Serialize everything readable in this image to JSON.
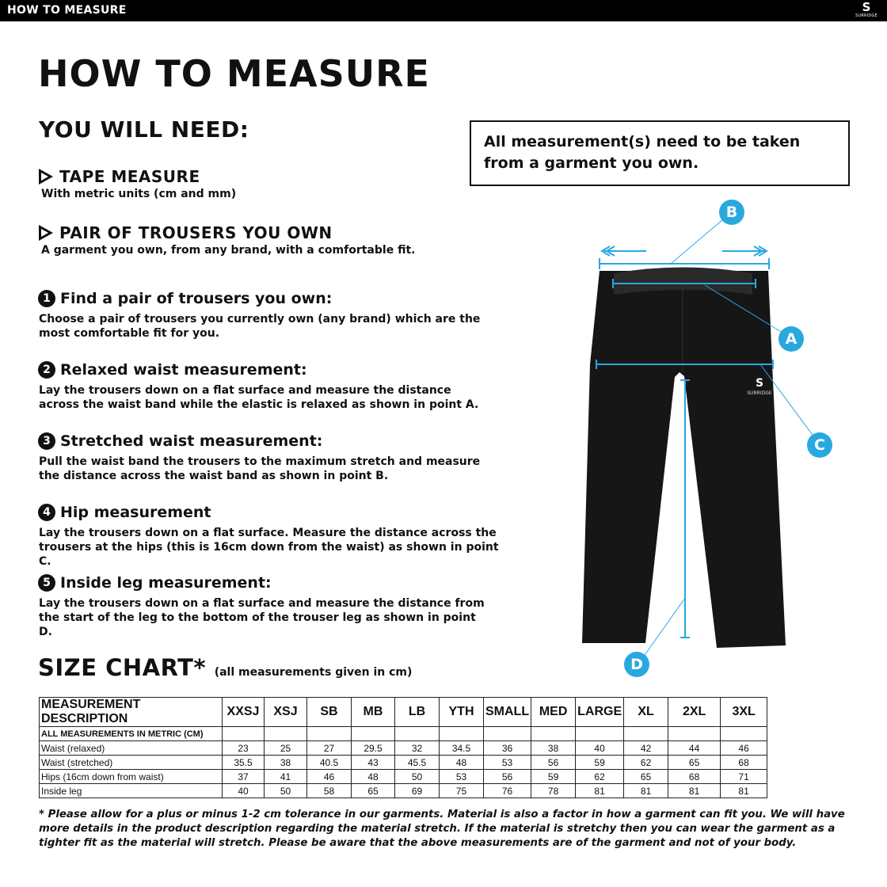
{
  "header": {
    "title": "HOW TO MEASURE",
    "logo": "SURRIDGE"
  },
  "page_title": "HOW TO MEASURE",
  "you_will_need": {
    "title": "YOU WILL NEED:",
    "items": [
      {
        "title": "TAPE MEASURE",
        "text": "With metric units (cm and mm)"
      },
      {
        "title": "PAIR OF TROUSERS YOU OWN",
        "text": "A garment you own, from any brand, with a comfortable fit."
      }
    ]
  },
  "note": "All measurement(s) need to be taken from a garment you own.",
  "steps": [
    {
      "n": "1",
      "title": "Find a pair of trousers you own:",
      "text": "Choose a pair of trousers you currently own (any brand) which are the most comfortable fit for you."
    },
    {
      "n": "2",
      "title": "Relaxed waist measurement:",
      "text": "Lay the trousers down on a flat surface and measure the distance across the waist band while the elastic is relaxed as shown in point A."
    },
    {
      "n": "3",
      "title": "Stretched waist measurement:",
      "text": "Pull the waist band the trousers to the maximum stretch and measure the distance across the waist band as shown in point B."
    },
    {
      "n": "4",
      "title": "Hip measurement",
      "text": "Lay the trousers down on a flat surface. Measure the distance across the trousers at the hips (this is 16cm down from the waist) as shown in point C."
    },
    {
      "n": "5",
      "title": "Inside leg measurement:",
      "text": "Lay the trousers down on a flat surface and measure the distance from the start of the leg to the bottom of the trouser leg as shown in point D."
    }
  ],
  "diagram": {
    "points": [
      "A",
      "B",
      "C",
      "D"
    ],
    "accent": "#29a8e0",
    "brand": "SURRIDGE"
  },
  "size_chart": {
    "title": "SIZE CHART*",
    "subtitle": "(all measurements given in cm)",
    "headers": [
      "MEASUREMENT DESCRIPTION",
      "XXSJ",
      "XSJ",
      "SB",
      "MB",
      "LB",
      "YTH",
      "SMALL",
      "MED",
      "LARGE",
      "XL",
      "2XL",
      "3XL"
    ],
    "units_row": "ALL MEASUREMENTS IN METRIC (CM)",
    "rows": [
      {
        "label": "Waist (relaxed)",
        "values": [
          "23",
          "25",
          "27",
          "29.5",
          "32",
          "34.5",
          "36",
          "38",
          "40",
          "42",
          "44",
          "46"
        ]
      },
      {
        "label": "Waist (stretched)",
        "values": [
          "35.5",
          "38",
          "40.5",
          "43",
          "45.5",
          "48",
          "53",
          "56",
          "59",
          "62",
          "65",
          "68"
        ]
      },
      {
        "label": "Hips (16cm down from waist)",
        "values": [
          "37",
          "41",
          "46",
          "48",
          "50",
          "53",
          "56",
          "59",
          "62",
          "65",
          "68",
          "71"
        ]
      },
      {
        "label": "Inside leg",
        "values": [
          "40",
          "50",
          "58",
          "65",
          "69",
          "75",
          "76",
          "78",
          "81",
          "81",
          "81",
          "81"
        ]
      }
    ]
  },
  "footnote": "* Please allow for a plus or minus 1-2 cm tolerance in our garments. Material is also a factor in how a garment can fit you. We will have more details in the product description regarding the material stretch.  If the material is stretchy then you can wear the garment as a tighter fit as the material will stretch.  Please be aware that the above measurements are of the garment and not of your body."
}
